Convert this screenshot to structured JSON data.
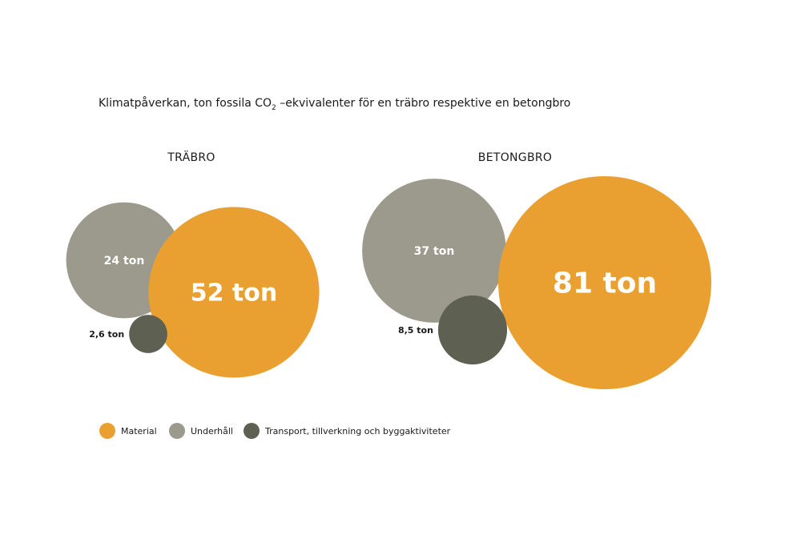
{
  "chart_data": {
    "type": "bubble",
    "title": {
      "prefix": "Klimatpåverkan, ton fossila CO",
      "subscript": "2",
      "suffix": " –ekvivalenter för en träbro respektive en betongbro"
    },
    "unit": "ton",
    "colors": {
      "Material": "#E9A030",
      "Underhåll": "#9B9A8C",
      "Transport": "#5E6152"
    },
    "legend": [
      {
        "key": "Material",
        "label": "Material"
      },
      {
        "key": "Underhåll",
        "label": "Underhåll"
      },
      {
        "key": "Transport",
        "label": "Transport, tillverkning och byggaktiviteter"
      }
    ],
    "groups": [
      {
        "name": "TRÄBRO",
        "items": [
          {
            "key": "Underhåll",
            "value": 24,
            "label": "24 ton"
          },
          {
            "key": "Material",
            "value": 52,
            "label": "52 ton"
          },
          {
            "key": "Transport",
            "value": 2.6,
            "label": "2,6 ton"
          }
        ]
      },
      {
        "name": "BETONGBRO",
        "items": [
          {
            "key": "Underhåll",
            "value": 37,
            "label": "37 ton"
          },
          {
            "key": "Material",
            "value": 81,
            "label": "81 ton"
          },
          {
            "key": "Transport",
            "value": 8.5,
            "label": "8,5 ton"
          }
        ]
      }
    ]
  }
}
